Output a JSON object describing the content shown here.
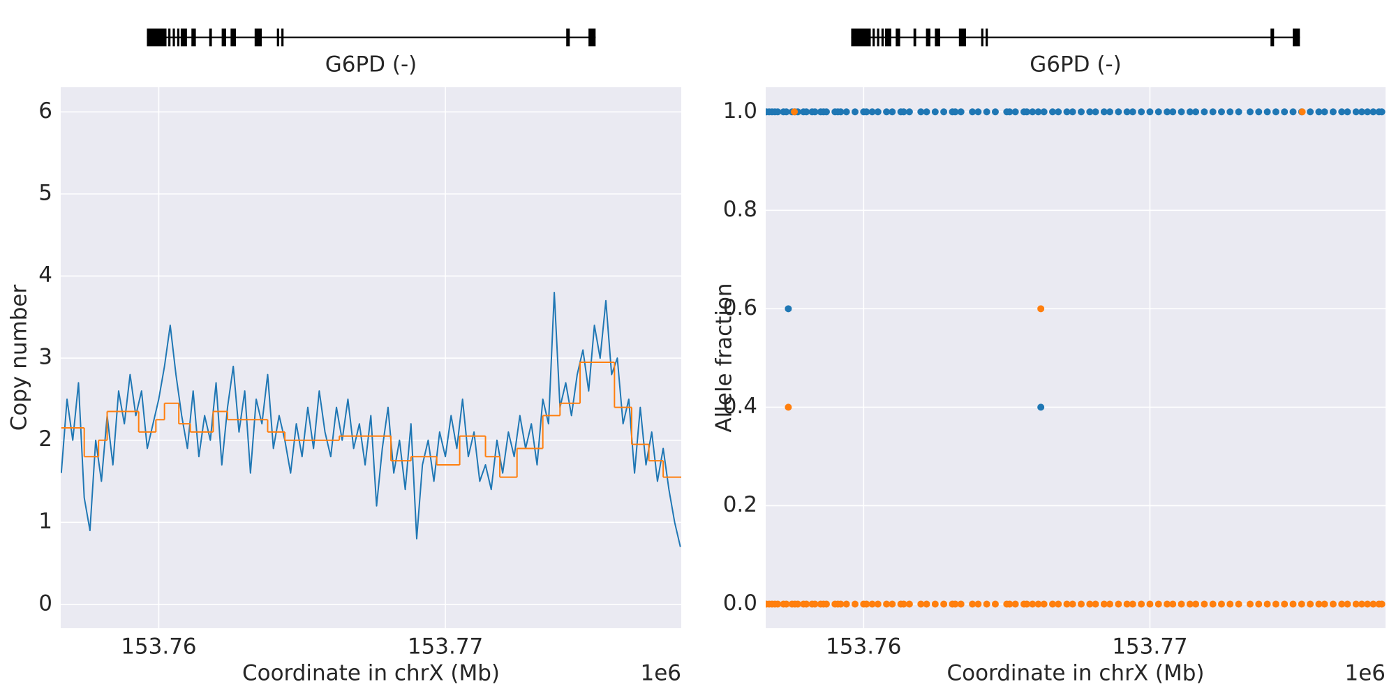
{
  "chart_data": [
    {
      "type": "line",
      "gene_label": "G6PD (-)",
      "xlabel": "Coordinate in chrX (Mb)",
      "ylabel": "Copy number",
      "offset_text": "1e6",
      "xlim": [
        153.75658,
        153.77823
      ],
      "ylim": [
        -0.29,
        6.3
      ],
      "xticks": [
        153.76,
        153.77
      ],
      "yticks": [
        0,
        1,
        2,
        3,
        4,
        5,
        6
      ],
      "grid": true,
      "series": [
        {
          "color": "#1f77b4",
          "x": [
            153.7566,
            153.7568,
            153.757,
            153.7572,
            153.7574,
            153.7576,
            153.7578,
            153.758,
            153.7582,
            153.7584,
            153.7586,
            153.7588,
            153.759,
            153.7592,
            153.7594,
            153.7596,
            153.7598,
            153.76,
            153.7602,
            153.7604,
            153.7606,
            153.7608,
            153.761,
            153.7612,
            153.7614,
            153.7616,
            153.7618,
            153.762,
            153.7622,
            153.7624,
            153.7626,
            153.7628,
            153.763,
            153.7632,
            153.7634,
            153.7636,
            153.7638,
            153.764,
            153.7642,
            153.7644,
            153.7646,
            153.7648,
            153.765,
            153.7652,
            153.7654,
            153.7656,
            153.7658,
            153.766,
            153.7662,
            153.7664,
            153.7666,
            153.7668,
            153.767,
            153.7672,
            153.7674,
            153.7676,
            153.7678,
            153.768,
            153.7682,
            153.7684,
            153.7686,
            153.7688,
            153.769,
            153.7692,
            153.7694,
            153.7696,
            153.7698,
            153.77,
            153.7702,
            153.7704,
            153.7706,
            153.7708,
            153.771,
            153.7712,
            153.7714,
            153.7716,
            153.7718,
            153.772,
            153.7722,
            153.7724,
            153.7726,
            153.7728,
            153.773,
            153.7732,
            153.7734,
            153.7736,
            153.7738,
            153.774,
            153.7742,
            153.7744,
            153.7746,
            153.7748,
            153.775,
            153.7752,
            153.7754,
            153.7756,
            153.7758,
            153.776,
            153.7762,
            153.7764,
            153.7766,
            153.7768,
            153.777,
            153.7772,
            153.7774,
            153.7776,
            153.7778,
            153.778,
            153.7782
          ],
          "values": [
            1.6,
            2.5,
            2.0,
            2.7,
            1.3,
            0.9,
            2.0,
            1.5,
            2.3,
            1.7,
            2.6,
            2.2,
            2.8,
            2.3,
            2.6,
            1.9,
            2.2,
            2.5,
            2.9,
            3.4,
            2.8,
            2.3,
            1.9,
            2.6,
            1.8,
            2.3,
            2.0,
            2.7,
            1.7,
            2.4,
            2.9,
            2.1,
            2.6,
            1.6,
            2.5,
            2.2,
            2.8,
            1.9,
            2.3,
            2.0,
            1.6,
            2.2,
            1.8,
            2.4,
            1.9,
            2.6,
            2.1,
            1.8,
            2.4,
            2.0,
            2.5,
            1.9,
            2.2,
            1.7,
            2.3,
            1.2,
            1.9,
            2.4,
            1.6,
            2.0,
            1.4,
            2.2,
            0.8,
            1.7,
            2.0,
            1.5,
            2.1,
            1.8,
            2.3,
            1.9,
            2.5,
            1.8,
            2.1,
            1.5,
            1.7,
            1.4,
            2.0,
            1.6,
            2.1,
            1.8,
            2.3,
            1.9,
            2.2,
            1.7,
            2.5,
            2.2,
            3.8,
            2.4,
            2.7,
            2.3,
            2.8,
            3.1,
            2.6,
            3.4,
            3.0,
            3.7,
            2.8,
            3.0,
            2.2,
            2.5,
            1.6,
            2.4,
            1.7,
            2.1,
            1.5,
            1.9,
            1.4,
            1.0,
            0.7
          ]
        },
        {
          "color": "#ff7f0e",
          "step": "post",
          "x": [
            153.7566,
            153.7574,
            153.7579,
            153.7582,
            153.7593,
            153.7599,
            153.7602,
            153.7607,
            153.7611,
            153.7619,
            153.7624,
            153.7638,
            153.7644,
            153.7663,
            153.7681,
            153.7688,
            153.7697,
            153.7705,
            153.7714,
            153.7719,
            153.7725,
            153.7734,
            153.774,
            153.7747,
            153.7759,
            153.7765,
            153.7771,
            153.7776
          ],
          "values": [
            2.15,
            1.8,
            2.0,
            2.35,
            2.1,
            2.25,
            2.45,
            2.2,
            2.1,
            2.35,
            2.25,
            2.1,
            2.0,
            2.05,
            1.75,
            1.8,
            1.7,
            2.05,
            1.8,
            1.55,
            1.9,
            2.3,
            2.45,
            2.95,
            2.4,
            1.95,
            1.75,
            1.55
          ]
        }
      ]
    },
    {
      "type": "scatter",
      "gene_label": "G6PD (-)",
      "xlabel": "Coordinate in chrX (Mb)",
      "ylabel": "Allele fraction",
      "offset_text": "1e6",
      "xlim": [
        153.75658,
        153.77823
      ],
      "ylim": [
        -0.049,
        1.05
      ],
      "xticks": [
        153.76,
        153.77
      ],
      "yticks": [
        {
          "value": 0,
          "label": "0.0"
        },
        0.2,
        0.4,
        0.6,
        0.8,
        {
          "value": 1,
          "label": "1.0"
        }
      ],
      "grid": true,
      "series": [
        {
          "color": "#1f77b4",
          "x": [
            153.7566,
            153.7567,
            153.7568,
            153.7569,
            153.757,
            153.7572,
            153.7573,
            153.7575,
            153.7576,
            153.7577,
            153.7579,
            153.758,
            153.7582,
            153.7583,
            153.7585,
            153.7586,
            153.7587,
            153.759,
            153.7591,
            153.7592,
            153.7594,
            153.7597,
            153.76,
            153.7601,
            153.7603,
            153.7605,
            153.7608,
            153.761,
            153.7613,
            153.7614,
            153.7616,
            153.762,
            153.7622,
            153.7625,
            153.7628,
            153.7631,
            153.7632,
            153.7634,
            153.7638,
            153.764,
            153.7643,
            153.7646,
            153.765,
            153.7651,
            153.7653,
            153.7656,
            153.7657,
            153.7659,
            153.7661,
            153.7663,
            153.7666,
            153.7668,
            153.7671,
            153.7673,
            153.7676,
            153.7679,
            153.7681,
            153.7684,
            153.7686,
            153.7689,
            153.7692,
            153.7694,
            153.7697,
            153.77,
            153.7703,
            153.7706,
            153.7708,
            153.7711,
            153.7714,
            153.7716,
            153.7719,
            153.7722,
            153.7725,
            153.7728,
            153.7731,
            153.7735,
            153.7738,
            153.7741,
            153.7744,
            153.7747,
            153.775,
            153.7753,
            153.7756,
            153.7759,
            153.7761,
            153.7764,
            153.7767,
            153.7769,
            153.7772,
            153.7774,
            153.7776,
            153.7778,
            153.778,
            153.7781
          ],
          "values": [
            1,
            1,
            1,
            1,
            1,
            1,
            1,
            1,
            1,
            1,
            1,
            1,
            1,
            1,
            1,
            1,
            1,
            1,
            1,
            1,
            1,
            1,
            1,
            1,
            1,
            1,
            1,
            1,
            1,
            1,
            1,
            1,
            1,
            1,
            1,
            1,
            1,
            1,
            1,
            1,
            1,
            1,
            1,
            1,
            1,
            1,
            1,
            1,
            1,
            1,
            1,
            1,
            1,
            1,
            1,
            1,
            1,
            1,
            1,
            1,
            1,
            1,
            1,
            1,
            1,
            1,
            1,
            1,
            1,
            1,
            1,
            1,
            1,
            1,
            1,
            1,
            1,
            1,
            1,
            1,
            1,
            1,
            1,
            1,
            1,
            1,
            1,
            1,
            1,
            1,
            1,
            1,
            1,
            1
          ]
        },
        {
          "color": "#ff7f0e",
          "x": [
            153.7566,
            153.7567,
            153.7568,
            153.7569,
            153.757,
            153.7572,
            153.7573,
            153.7575,
            153.7576,
            153.7577,
            153.7579,
            153.758,
            153.7582,
            153.7583,
            153.7585,
            153.7586,
            153.7587,
            153.759,
            153.7591,
            153.7592,
            153.7594,
            153.7597,
            153.76,
            153.7601,
            153.7603,
            153.7605,
            153.7608,
            153.761,
            153.7613,
            153.7614,
            153.7616,
            153.762,
            153.7622,
            153.7625,
            153.7628,
            153.7631,
            153.7632,
            153.7634,
            153.7638,
            153.764,
            153.7643,
            153.7646,
            153.765,
            153.7651,
            153.7653,
            153.7656,
            153.7657,
            153.7659,
            153.7661,
            153.7663,
            153.7666,
            153.7668,
            153.7671,
            153.7673,
            153.7676,
            153.7679,
            153.7681,
            153.7684,
            153.7686,
            153.7689,
            153.7692,
            153.7694,
            153.7697,
            153.77,
            153.7703,
            153.7706,
            153.7708,
            153.7711,
            153.7714,
            153.7716,
            153.7719,
            153.7722,
            153.7725,
            153.7728,
            153.7731,
            153.7735,
            153.7738,
            153.7741,
            153.7744,
            153.7747,
            153.775,
            153.7753,
            153.7756,
            153.7759,
            153.7761,
            153.7764,
            153.7767,
            153.7769,
            153.7772,
            153.7774,
            153.7776,
            153.7778,
            153.778,
            153.7781
          ],
          "values": [
            0,
            0,
            0,
            0,
            0,
            0,
            0,
            0,
            0,
            0,
            0,
            0,
            0,
            0,
            0,
            0,
            0,
            0,
            0,
            0,
            0,
            0,
            0,
            0,
            0,
            0,
            0,
            0,
            0,
            0,
            0,
            0,
            0,
            0,
            0,
            0,
            0,
            0,
            0,
            0,
            0,
            0,
            0,
            0,
            0,
            0,
            0,
            0,
            0,
            0,
            0,
            0,
            0,
            0,
            0,
            0,
            0,
            0,
            0,
            0,
            0,
            0,
            0,
            0,
            0,
            0,
            0,
            0,
            0,
            0,
            0,
            0,
            0,
            0,
            0,
            0,
            0,
            0,
            0,
            0,
            0,
            0,
            0,
            0,
            0,
            0,
            0,
            0,
            0,
            0,
            0,
            0,
            0,
            0
          ]
        },
        {
          "color": "#1f77b4",
          "x": [
            153.75737,
            153.76619
          ],
          "values": [
            0.6,
            0.4
          ]
        },
        {
          "color": "#ff7f0e",
          "x": [
            153.75737,
            153.76619,
            153.75758,
            153.77532
          ],
          "values": [
            0.4,
            0.6,
            1.0,
            1.0
          ]
        }
      ]
    }
  ]
}
